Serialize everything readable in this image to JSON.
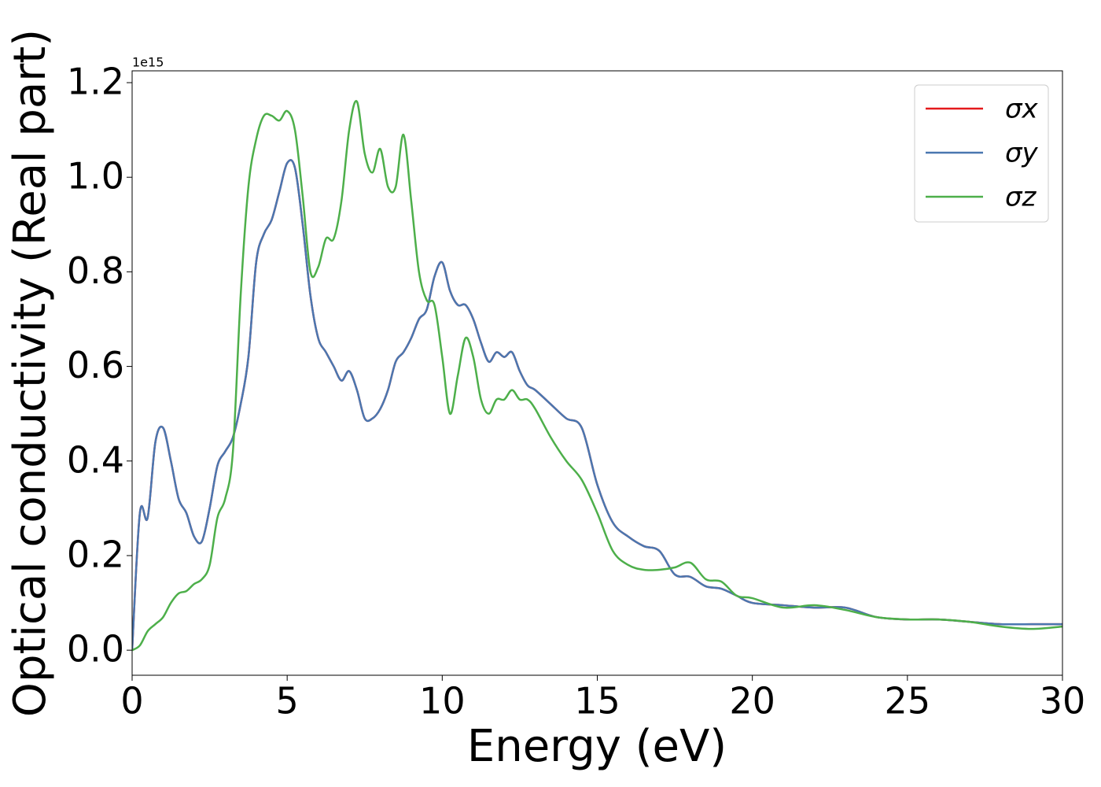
{
  "chart_data": {
    "type": "line",
    "xlabel": "Energy (eV)",
    "ylabel": "Optical conductivity (Real part)",
    "y_offset_label": "1e15",
    "xlim": [
      0,
      30
    ],
    "xticks": [
      0,
      5,
      10,
      15,
      20,
      25,
      30
    ],
    "ylim": [
      -0.053,
      1.225
    ],
    "yticks": [
      {
        "value": 0,
        "label": "0.0"
      },
      0.2,
      0.4,
      0.6,
      0.8,
      {
        "value": 1,
        "label": "1.0"
      },
      1.2
    ],
    "legend": "upper right",
    "x": [
      0,
      0.25,
      0.5,
      0.75,
      1,
      1.25,
      1.5,
      1.75,
      2,
      2.25,
      2.5,
      2.75,
      3,
      3.25,
      3.5,
      3.75,
      4,
      4.25,
      4.5,
      4.75,
      5,
      5.25,
      5.5,
      5.75,
      6,
      6.25,
      6.5,
      6.75,
      7,
      7.25,
      7.5,
      7.75,
      8,
      8.25,
      8.5,
      8.75,
      9,
      9.25,
      9.5,
      9.75,
      10,
      10.25,
      10.5,
      10.75,
      11,
      11.25,
      11.5,
      11.75,
      12,
      12.25,
      12.5,
      12.75,
      13,
      13.5,
      14,
      14.5,
      15,
      15.5,
      16,
      16.5,
      17,
      17.5,
      18,
      18.5,
      19,
      19.5,
      20,
      21,
      22,
      23,
      24,
      25,
      26,
      27,
      28,
      29,
      30
    ],
    "series": [
      {
        "name": "σx",
        "color": "#e41a1c",
        "values": [
          0,
          0.29,
          0.28,
          0.44,
          0.47,
          0.4,
          0.32,
          0.29,
          0.24,
          0.23,
          0.3,
          0.39,
          0.42,
          0.45,
          0.52,
          0.62,
          0.82,
          0.88,
          0.91,
          0.97,
          1.03,
          1.02,
          0.9,
          0.75,
          0.66,
          0.63,
          0.6,
          0.57,
          0.59,
          0.55,
          0.49,
          0.49,
          0.51,
          0.55,
          0.61,
          0.63,
          0.66,
          0.7,
          0.72,
          0.79,
          0.82,
          0.76,
          0.73,
          0.73,
          0.7,
          0.65,
          0.61,
          0.63,
          0.62,
          0.63,
          0.59,
          0.56,
          0.55,
          0.52,
          0.49,
          0.47,
          0.35,
          0.27,
          0.24,
          0.22,
          0.21,
          0.16,
          0.155,
          0.135,
          0.13,
          0.115,
          0.1,
          0.095,
          0.09,
          0.09,
          0.07,
          0.065,
          0.065,
          0.06,
          0.055,
          0.055,
          0.055
        ]
      },
      {
        "name": "σy",
        "color": "#4a77b0",
        "values": [
          0,
          0.29,
          0.28,
          0.44,
          0.47,
          0.4,
          0.32,
          0.29,
          0.24,
          0.23,
          0.3,
          0.39,
          0.42,
          0.45,
          0.52,
          0.62,
          0.82,
          0.88,
          0.91,
          0.97,
          1.03,
          1.02,
          0.9,
          0.75,
          0.66,
          0.63,
          0.6,
          0.57,
          0.59,
          0.55,
          0.49,
          0.49,
          0.51,
          0.55,
          0.61,
          0.63,
          0.66,
          0.7,
          0.72,
          0.79,
          0.82,
          0.76,
          0.73,
          0.73,
          0.7,
          0.65,
          0.61,
          0.63,
          0.62,
          0.63,
          0.59,
          0.56,
          0.55,
          0.52,
          0.49,
          0.47,
          0.35,
          0.27,
          0.24,
          0.22,
          0.21,
          0.16,
          0.155,
          0.135,
          0.13,
          0.115,
          0.1,
          0.095,
          0.09,
          0.09,
          0.07,
          0.065,
          0.065,
          0.06,
          0.055,
          0.055,
          0.055
        ]
      },
      {
        "name": "σz",
        "color": "#4daf4a",
        "values": [
          0,
          0.01,
          0.04,
          0.055,
          0.07,
          0.1,
          0.12,
          0.125,
          0.14,
          0.15,
          0.18,
          0.28,
          0.32,
          0.42,
          0.75,
          0.98,
          1.08,
          1.13,
          1.13,
          1.12,
          1.14,
          1.1,
          0.96,
          0.8,
          0.81,
          0.87,
          0.87,
          0.95,
          1.1,
          1.16,
          1.05,
          1.01,
          1.06,
          0.98,
          0.98,
          1.09,
          0.95,
          0.8,
          0.74,
          0.73,
          0.62,
          0.5,
          0.58,
          0.66,
          0.62,
          0.53,
          0.5,
          0.53,
          0.53,
          0.55,
          0.53,
          0.53,
          0.51,
          0.45,
          0.4,
          0.36,
          0.29,
          0.21,
          0.18,
          0.17,
          0.17,
          0.175,
          0.185,
          0.15,
          0.145,
          0.115,
          0.11,
          0.09,
          0.095,
          0.085,
          0.07,
          0.065,
          0.065,
          0.06,
          0.05,
          0.045,
          0.05
        ]
      }
    ]
  }
}
